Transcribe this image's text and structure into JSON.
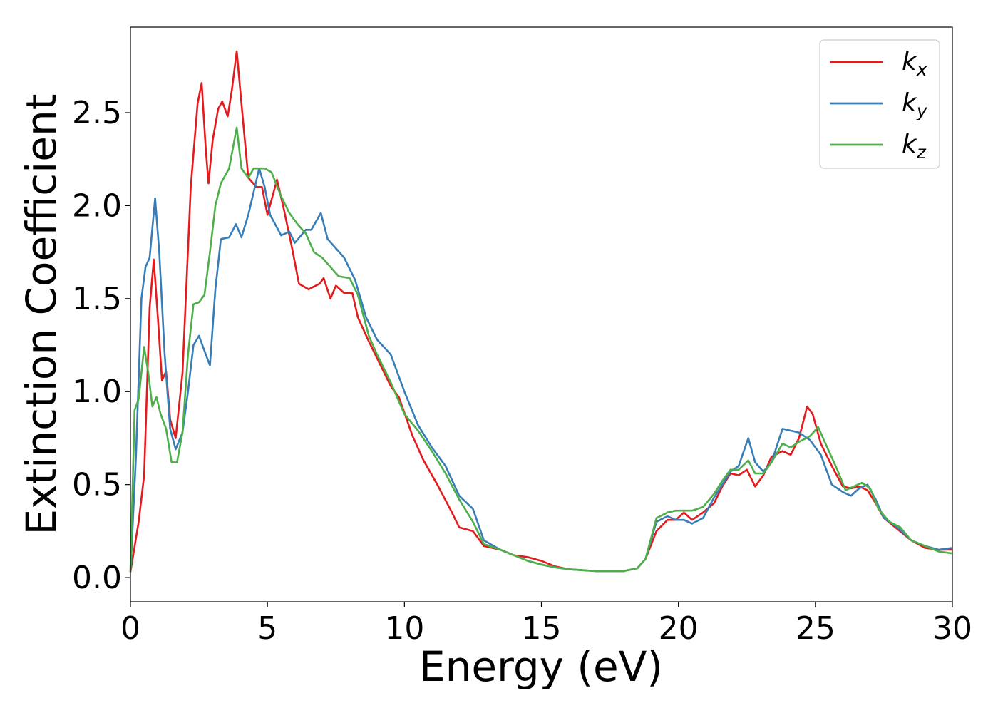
{
  "chart_data": {
    "type": "line",
    "xlabel": "Energy (eV)",
    "ylabel": "Extinction Coefficient",
    "xlim": [
      0,
      30
    ],
    "ylim": [
      -0.13,
      2.96
    ],
    "x_ticks": [
      "0",
      "5",
      "10",
      "15",
      "20",
      "25",
      "30"
    ],
    "y_ticks": [
      "0.0",
      "0.5",
      "1.0",
      "1.5",
      "2.0",
      "2.5"
    ],
    "legend_position": "top-right",
    "grid": false,
    "series": [
      {
        "name": "k_x",
        "label_base": "k",
        "label_sub": "x",
        "color": "#e41a1c",
        "points": [
          [
            0,
            0.03
          ],
          [
            0.3,
            0.3
          ],
          [
            0.5,
            0.55
          ],
          [
            0.7,
            1.45
          ],
          [
            0.85,
            1.71
          ],
          [
            1.0,
            1.4
          ],
          [
            1.15,
            1.06
          ],
          [
            1.3,
            1.11
          ],
          [
            1.45,
            0.85
          ],
          [
            1.65,
            0.75
          ],
          [
            1.9,
            1.1
          ],
          [
            2.2,
            2.1
          ],
          [
            2.45,
            2.55
          ],
          [
            2.6,
            2.66
          ],
          [
            2.75,
            2.3
          ],
          [
            2.85,
            2.12
          ],
          [
            3.0,
            2.35
          ],
          [
            3.2,
            2.52
          ],
          [
            3.35,
            2.56
          ],
          [
            3.55,
            2.48
          ],
          [
            3.7,
            2.62
          ],
          [
            3.88,
            2.83
          ],
          [
            4.05,
            2.55
          ],
          [
            4.3,
            2.15
          ],
          [
            4.6,
            2.1
          ],
          [
            4.8,
            2.1
          ],
          [
            5.0,
            1.95
          ],
          [
            5.35,
            2.14
          ],
          [
            5.6,
            1.98
          ],
          [
            5.9,
            1.77
          ],
          [
            6.15,
            1.58
          ],
          [
            6.5,
            1.55
          ],
          [
            6.9,
            1.58
          ],
          [
            7.05,
            1.61
          ],
          [
            7.3,
            1.5
          ],
          [
            7.5,
            1.57
          ],
          [
            7.8,
            1.53
          ],
          [
            8.1,
            1.53
          ],
          [
            8.3,
            1.4
          ],
          [
            8.7,
            1.27
          ],
          [
            9.0,
            1.18
          ],
          [
            9.5,
            1.03
          ],
          [
            9.8,
            0.97
          ],
          [
            10.3,
            0.76
          ],
          [
            10.7,
            0.63
          ],
          [
            11.2,
            0.5
          ],
          [
            11.7,
            0.36
          ],
          [
            12.0,
            0.27
          ],
          [
            12.5,
            0.25
          ],
          [
            12.9,
            0.17
          ],
          [
            13.5,
            0.15
          ],
          [
            14.0,
            0.12
          ],
          [
            14.5,
            0.11
          ],
          [
            15.0,
            0.09
          ],
          [
            15.5,
            0.06
          ],
          [
            16.0,
            0.045
          ],
          [
            16.5,
            0.04
          ],
          [
            17.0,
            0.035
          ],
          [
            17.5,
            0.035
          ],
          [
            18.0,
            0.035
          ],
          [
            18.5,
            0.05
          ],
          [
            18.8,
            0.1
          ],
          [
            19.2,
            0.25
          ],
          [
            19.6,
            0.31
          ],
          [
            19.9,
            0.31
          ],
          [
            20.2,
            0.35
          ],
          [
            20.5,
            0.31
          ],
          [
            20.9,
            0.35
          ],
          [
            21.3,
            0.4
          ],
          [
            21.6,
            0.49
          ],
          [
            21.9,
            0.56
          ],
          [
            22.2,
            0.55
          ],
          [
            22.5,
            0.58
          ],
          [
            22.8,
            0.49
          ],
          [
            23.1,
            0.55
          ],
          [
            23.4,
            0.65
          ],
          [
            23.8,
            0.68
          ],
          [
            24.1,
            0.66
          ],
          [
            24.4,
            0.75
          ],
          [
            24.7,
            0.92
          ],
          [
            24.9,
            0.88
          ],
          [
            25.2,
            0.72
          ],
          [
            25.6,
            0.6
          ],
          [
            26.0,
            0.49
          ],
          [
            26.3,
            0.48
          ],
          [
            26.6,
            0.49
          ],
          [
            26.9,
            0.47
          ],
          [
            27.2,
            0.4
          ],
          [
            27.5,
            0.32
          ],
          [
            28.0,
            0.26
          ],
          [
            28.5,
            0.2
          ],
          [
            29.0,
            0.16
          ],
          [
            29.5,
            0.15
          ],
          [
            30.0,
            0.15
          ]
        ]
      },
      {
        "name": "k_y",
        "label_base": "k",
        "label_sub": "y",
        "color": "#377eb8",
        "points": [
          [
            0,
            0.03
          ],
          [
            0.2,
            0.65
          ],
          [
            0.4,
            1.5
          ],
          [
            0.55,
            1.67
          ],
          [
            0.7,
            1.72
          ],
          [
            0.9,
            2.04
          ],
          [
            1.05,
            1.75
          ],
          [
            1.25,
            1.2
          ],
          [
            1.45,
            0.8
          ],
          [
            1.65,
            0.69
          ],
          [
            1.9,
            0.78
          ],
          [
            2.1,
            1.0
          ],
          [
            2.3,
            1.25
          ],
          [
            2.5,
            1.3
          ],
          [
            2.7,
            1.22
          ],
          [
            2.9,
            1.14
          ],
          [
            3.1,
            1.55
          ],
          [
            3.3,
            1.82
          ],
          [
            3.6,
            1.83
          ],
          [
            3.85,
            1.9
          ],
          [
            4.05,
            1.83
          ],
          [
            4.3,
            1.95
          ],
          [
            4.7,
            2.2
          ],
          [
            4.9,
            2.1
          ],
          [
            5.1,
            1.95
          ],
          [
            5.5,
            1.84
          ],
          [
            5.8,
            1.86
          ],
          [
            6.0,
            1.8
          ],
          [
            6.4,
            1.87
          ],
          [
            6.6,
            1.87
          ],
          [
            6.95,
            1.96
          ],
          [
            7.2,
            1.82
          ],
          [
            7.5,
            1.77
          ],
          [
            7.8,
            1.72
          ],
          [
            8.2,
            1.6
          ],
          [
            8.6,
            1.4
          ],
          [
            9.0,
            1.28
          ],
          [
            9.5,
            1.2
          ],
          [
            10.0,
            1.0
          ],
          [
            10.5,
            0.82
          ],
          [
            11.0,
            0.7
          ],
          [
            11.5,
            0.6
          ],
          [
            12.0,
            0.44
          ],
          [
            12.5,
            0.37
          ],
          [
            12.9,
            0.2
          ],
          [
            13.5,
            0.15
          ],
          [
            14.0,
            0.12
          ],
          [
            14.5,
            0.09
          ],
          [
            15.0,
            0.07
          ],
          [
            15.5,
            0.055
          ],
          [
            16.0,
            0.045
          ],
          [
            16.5,
            0.04
          ],
          [
            17.0,
            0.035
          ],
          [
            17.5,
            0.035
          ],
          [
            18.0,
            0.035
          ],
          [
            18.5,
            0.05
          ],
          [
            18.8,
            0.1
          ],
          [
            19.2,
            0.3
          ],
          [
            19.6,
            0.33
          ],
          [
            19.9,
            0.31
          ],
          [
            20.2,
            0.31
          ],
          [
            20.5,
            0.29
          ],
          [
            20.9,
            0.32
          ],
          [
            21.3,
            0.43
          ],
          [
            21.6,
            0.5
          ],
          [
            21.9,
            0.57
          ],
          [
            22.2,
            0.6
          ],
          [
            22.55,
            0.75
          ],
          [
            22.8,
            0.62
          ],
          [
            23.1,
            0.57
          ],
          [
            23.4,
            0.62
          ],
          [
            23.8,
            0.8
          ],
          [
            24.1,
            0.79
          ],
          [
            24.4,
            0.78
          ],
          [
            24.8,
            0.74
          ],
          [
            25.2,
            0.66
          ],
          [
            25.6,
            0.5
          ],
          [
            26.0,
            0.46
          ],
          [
            26.3,
            0.44
          ],
          [
            26.6,
            0.48
          ],
          [
            26.9,
            0.5
          ],
          [
            27.2,
            0.42
          ],
          [
            27.5,
            0.32
          ],
          [
            28.0,
            0.27
          ],
          [
            28.5,
            0.2
          ],
          [
            29.0,
            0.17
          ],
          [
            29.5,
            0.15
          ],
          [
            30.0,
            0.16
          ]
        ]
      },
      {
        "name": "k_z",
        "label_base": "k",
        "label_sub": "z",
        "color": "#4daf4a",
        "points": [
          [
            0,
            0.03
          ],
          [
            0.15,
            0.9
          ],
          [
            0.3,
            0.96
          ],
          [
            0.5,
            1.24
          ],
          [
            0.65,
            1.1
          ],
          [
            0.8,
            0.92
          ],
          [
            0.95,
            0.97
          ],
          [
            1.1,
            0.88
          ],
          [
            1.3,
            0.8
          ],
          [
            1.5,
            0.62
          ],
          [
            1.7,
            0.62
          ],
          [
            1.9,
            0.78
          ],
          [
            2.1,
            1.2
          ],
          [
            2.3,
            1.47
          ],
          [
            2.5,
            1.48
          ],
          [
            2.7,
            1.52
          ],
          [
            2.9,
            1.75
          ],
          [
            3.1,
            2.0
          ],
          [
            3.3,
            2.12
          ],
          [
            3.6,
            2.2
          ],
          [
            3.88,
            2.42
          ],
          [
            4.05,
            2.2
          ],
          [
            4.3,
            2.15
          ],
          [
            4.5,
            2.2
          ],
          [
            4.7,
            2.2
          ],
          [
            4.9,
            2.2
          ],
          [
            5.15,
            2.18
          ],
          [
            5.5,
            2.05
          ],
          [
            5.8,
            1.96
          ],
          [
            6.1,
            1.9
          ],
          [
            6.4,
            1.85
          ],
          [
            6.7,
            1.75
          ],
          [
            7.0,
            1.72
          ],
          [
            7.3,
            1.67
          ],
          [
            7.6,
            1.62
          ],
          [
            8.0,
            1.61
          ],
          [
            8.3,
            1.52
          ],
          [
            8.7,
            1.3
          ],
          [
            9.0,
            1.2
          ],
          [
            9.5,
            1.05
          ],
          [
            10.0,
            0.88
          ],
          [
            10.5,
            0.79
          ],
          [
            11.0,
            0.68
          ],
          [
            11.5,
            0.56
          ],
          [
            12.0,
            0.42
          ],
          [
            12.5,
            0.3
          ],
          [
            12.9,
            0.18
          ],
          [
            13.5,
            0.15
          ],
          [
            14.0,
            0.12
          ],
          [
            14.5,
            0.09
          ],
          [
            15.0,
            0.07
          ],
          [
            15.5,
            0.055
          ],
          [
            16.0,
            0.045
          ],
          [
            16.5,
            0.04
          ],
          [
            17.0,
            0.035
          ],
          [
            17.5,
            0.035
          ],
          [
            18.0,
            0.035
          ],
          [
            18.5,
            0.05
          ],
          [
            18.8,
            0.1
          ],
          [
            19.2,
            0.32
          ],
          [
            19.6,
            0.35
          ],
          [
            19.9,
            0.36
          ],
          [
            20.2,
            0.36
          ],
          [
            20.5,
            0.36
          ],
          [
            20.9,
            0.38
          ],
          [
            21.3,
            0.45
          ],
          [
            21.6,
            0.52
          ],
          [
            21.9,
            0.58
          ],
          [
            22.2,
            0.58
          ],
          [
            22.55,
            0.63
          ],
          [
            22.8,
            0.56
          ],
          [
            23.1,
            0.56
          ],
          [
            23.4,
            0.62
          ],
          [
            23.8,
            0.72
          ],
          [
            24.1,
            0.7
          ],
          [
            24.4,
            0.73
          ],
          [
            24.8,
            0.76
          ],
          [
            25.1,
            0.81
          ],
          [
            25.4,
            0.71
          ],
          [
            25.8,
            0.58
          ],
          [
            26.1,
            0.47
          ],
          [
            26.4,
            0.49
          ],
          [
            26.7,
            0.51
          ],
          [
            27.0,
            0.48
          ],
          [
            27.3,
            0.37
          ],
          [
            27.7,
            0.3
          ],
          [
            28.1,
            0.27
          ],
          [
            28.5,
            0.2
          ],
          [
            29.0,
            0.17
          ],
          [
            29.5,
            0.14
          ],
          [
            30.0,
            0.13
          ]
        ]
      }
    ]
  }
}
